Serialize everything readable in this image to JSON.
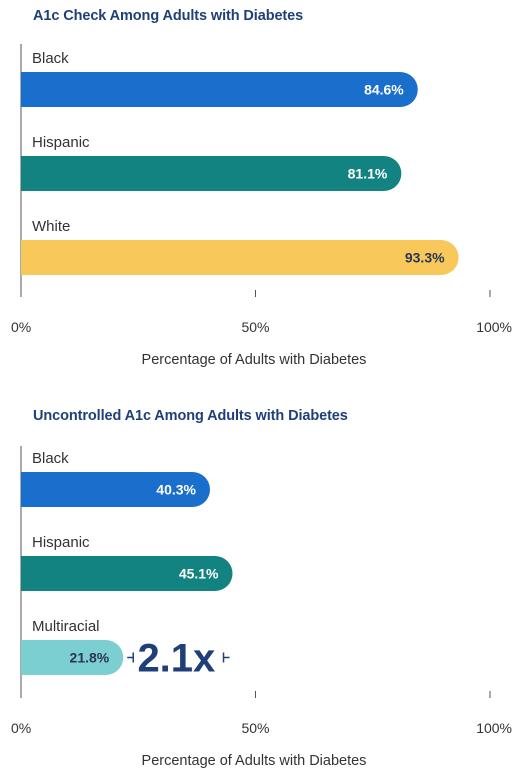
{
  "chart_data": [
    {
      "type": "bar",
      "orientation": "horizontal",
      "title": "A1c Check Among Adults with Diabetes",
      "categories": [
        "Black",
        "Hispanic",
        "White"
      ],
      "values": [
        84.6,
        81.1,
        93.3
      ],
      "value_labels": [
        "84.6%",
        "81.1%",
        "93.3%"
      ],
      "colors": [
        "#1a6fcd",
        "#128381",
        "#f9c85a"
      ],
      "label_colors": [
        "#ffffff",
        "#ffffff",
        "#2b3557"
      ],
      "xlim": [
        0,
        100
      ],
      "xticks": [
        "0%",
        "50%",
        "100%"
      ],
      "xlabel": "Percentage of Adults with Diabetes",
      "grid": false,
      "legend": "none"
    },
    {
      "type": "bar",
      "orientation": "horizontal",
      "title": "Uncontrolled A1c Among Adults with Diabetes",
      "categories": [
        "Black",
        "Hispanic",
        "Multiracial"
      ],
      "values": [
        40.3,
        45.1,
        21.8
      ],
      "value_labels": [
        "40.3%",
        "45.1%",
        "21.8%"
      ],
      "colors": [
        "#1a6fcd",
        "#128381",
        "#7ccfd1"
      ],
      "label_colors": [
        "#ffffff",
        "#ffffff",
        "#2b3557"
      ],
      "xlim": [
        0,
        100
      ],
      "xticks": [
        "0%",
        "50%",
        "100%"
      ],
      "xlabel": "Percentage of Adults with Diabetes",
      "grid": false,
      "legend": "none",
      "annotation": {
        "text": "2.1x",
        "from": 21.8,
        "to": 45.1,
        "color": "#1f3f78"
      }
    }
  ]
}
